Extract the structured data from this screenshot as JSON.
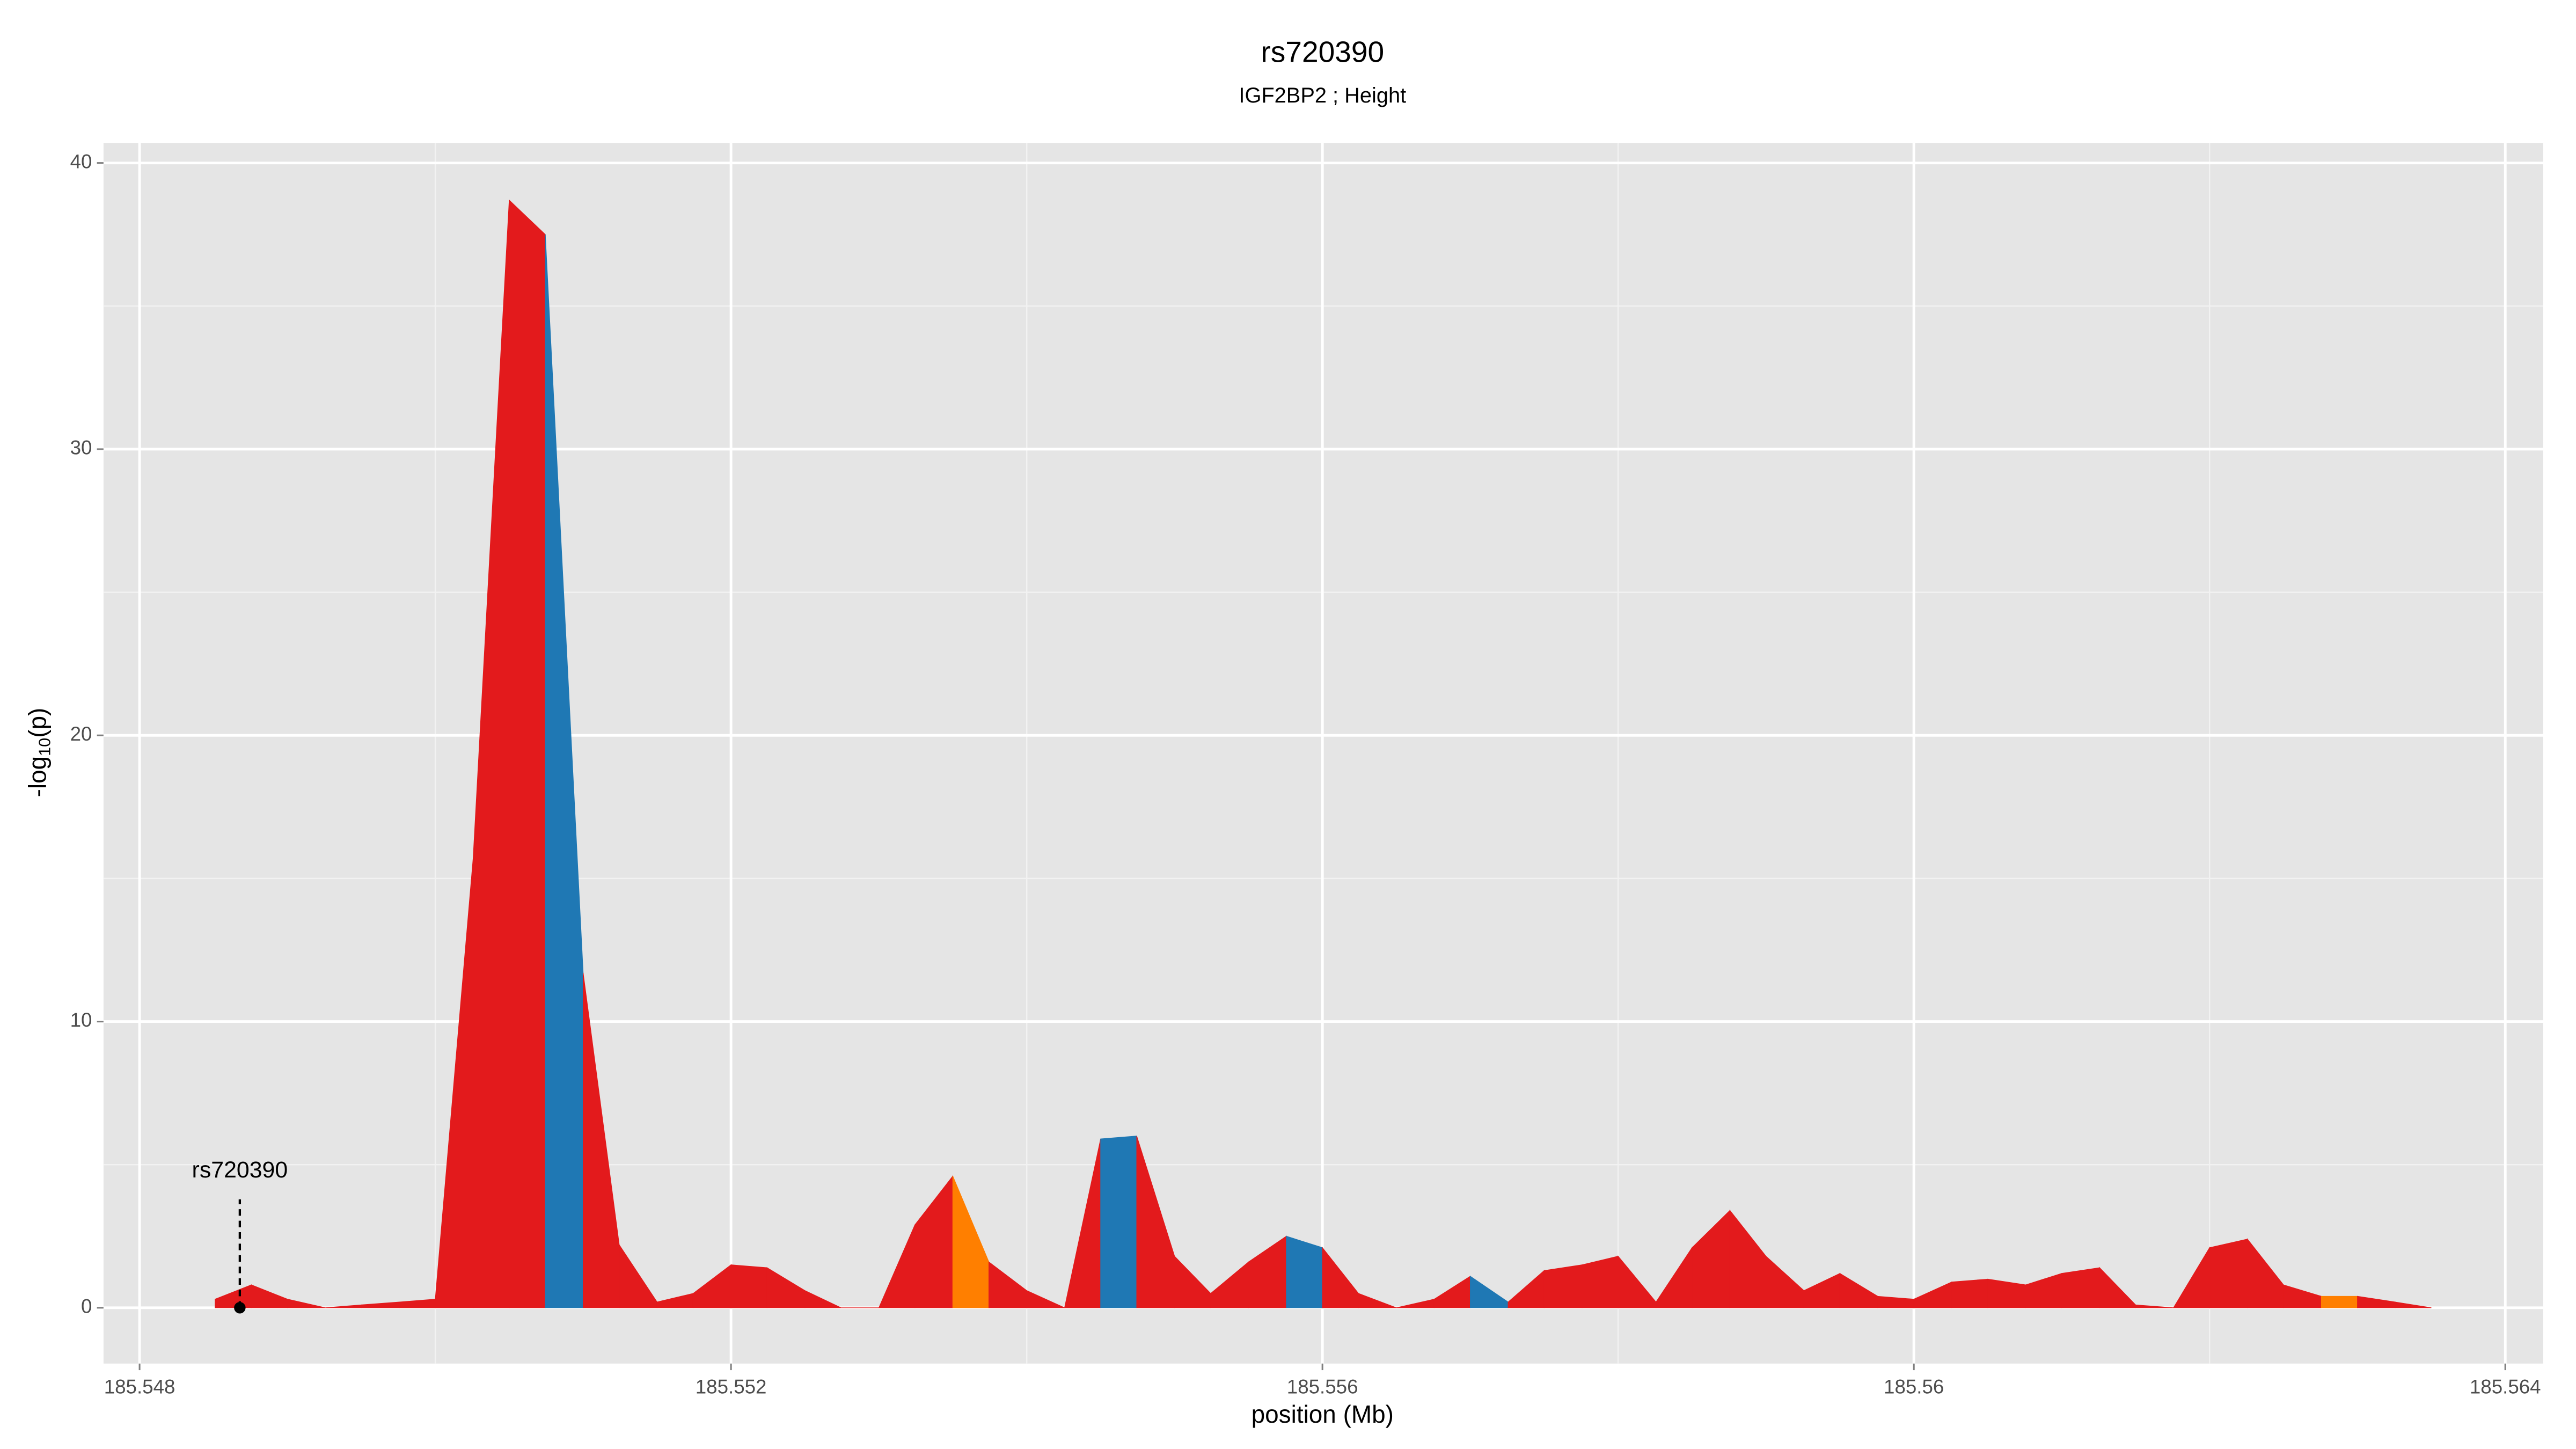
{
  "chart_data": {
    "type": "area",
    "title": "rs720390",
    "subtitle": "IGF2BP2 ; Height",
    "xlabel": "position (Mb)",
    "ylabel": [
      "-log",
      "10",
      "(p)"
    ],
    "x": [
      185.548511,
      185.548756,
      185.549,
      185.549256,
      185.5495,
      185.549756,
      185.55,
      185.550256,
      185.5505,
      185.550744,
      185.551,
      185.551244,
      185.5515,
      185.551744,
      185.552,
      185.552244,
      185.5525,
      185.552744,
      185.553,
      185.553244,
      185.5535,
      185.553744,
      185.554,
      185.554256,
      185.5545,
      185.554744,
      185.555,
      185.555244,
      185.5555,
      185.555756,
      185.556,
      185.556244,
      185.5565,
      185.556756,
      185.557,
      185.557256,
      185.5575,
      185.557756,
      185.558,
      185.558256,
      185.5585,
      185.558756,
      185.559,
      185.559256,
      185.5595,
      185.559756,
      185.56,
      185.560256,
      185.5605,
      185.560756,
      185.561,
      185.561256,
      185.5615,
      185.561756,
      185.562,
      185.562256,
      185.5625,
      185.562756,
      185.563,
      185.563256,
      185.5635
    ],
    "y": [
      0.3,
      0.8,
      0.3,
      0.0,
      0.1,
      0.2,
      0.3,
      15.7,
      38.7,
      37.5,
      11.7,
      2.2,
      0.2,
      0.5,
      1.5,
      1.4,
      0.6,
      0.0,
      0.0,
      2.9,
      4.6,
      1.6,
      0.6,
      0.0,
      5.9,
      6.0,
      1.8,
      0.5,
      1.6,
      2.5,
      2.1,
      0.5,
      0.0,
      0.3,
      1.1,
      0.2,
      1.3,
      1.5,
      1.8,
      0.2,
      2.1,
      3.4,
      1.8,
      0.6,
      1.2,
      0.4,
      0.3,
      0.9,
      1.0,
      0.8,
      1.2,
      1.4,
      0.1,
      0.0,
      2.1,
      2.4,
      0.8,
      0.4,
      0.4,
      0.2,
      0.0
    ],
    "segment_colors": [
      "#e31a1c",
      "#e31a1c",
      "#e31a1c",
      "#e31a1c",
      "#e31a1c",
      "#e31a1c",
      "#e31a1c",
      "#e31a1c",
      "#e31a1c",
      "#1f78b4",
      "#e31a1c",
      "#e31a1c",
      "#e31a1c",
      "#e31a1c",
      "#e31a1c",
      "#e31a1c",
      "#e31a1c",
      "#e31a1c",
      "#e31a1c",
      "#e31a1c",
      "#ff7f00",
      "#e31a1c",
      "#e31a1c",
      "#e31a1c",
      "#1f78b4",
      "#e31a1c",
      "#e31a1c",
      "#e31a1c",
      "#e31a1c",
      "#1f78b4",
      "#e31a1c",
      "#e31a1c",
      "#e31a1c",
      "#e31a1c",
      "#1f78b4",
      "#e31a1c",
      "#e31a1c",
      "#e31a1c",
      "#e31a1c",
      "#e31a1c",
      "#e31a1c",
      "#e31a1c",
      "#e31a1c",
      "#e31a1c",
      "#e31a1c",
      "#e31a1c",
      "#e31a1c",
      "#e31a1c",
      "#e31a1c",
      "#e31a1c",
      "#e31a1c",
      "#e31a1c",
      "#e31a1c",
      "#e31a1c",
      "#e31a1c",
      "#e31a1c",
      "#e31a1c",
      "#ff7f00",
      "#e31a1c",
      "#e31a1c"
    ],
    "annotation": {
      "label": "rs720390",
      "x": 185.548678,
      "y": 0
    },
    "xlim": [
      185.547756,
      185.564256
    ],
    "ylim": [
      -1.95,
      40.7
    ],
    "xticks": [
      185.548,
      185.552,
      185.556,
      185.56,
      185.564
    ],
    "xminor": [
      185.55,
      185.554,
      185.558,
      185.562
    ],
    "yticks": [
      0,
      10,
      20,
      30,
      40
    ],
    "yminor": [
      5,
      15,
      25,
      35
    ],
    "grid": true
  }
}
